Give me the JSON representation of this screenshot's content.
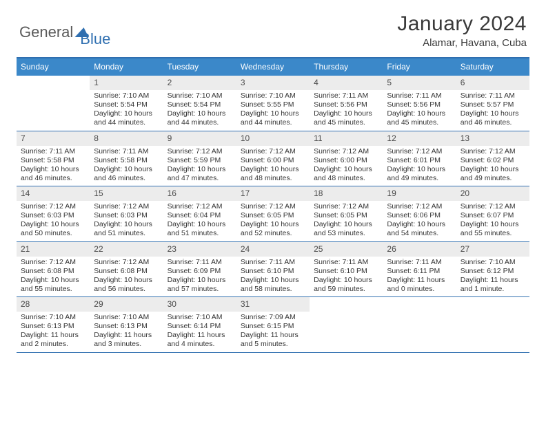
{
  "logo": {
    "text1": "General",
    "text2": "Blue"
  },
  "title": "January 2024",
  "location": "Alamar, Havana, Cuba",
  "colors": {
    "header_bar": "#3b88c9",
    "rule": "#2f6fb0",
    "daynum_bg": "#ececec",
    "text": "#333333"
  },
  "daysOfWeek": [
    "Sunday",
    "Monday",
    "Tuesday",
    "Wednesday",
    "Thursday",
    "Friday",
    "Saturday"
  ],
  "weeks": [
    [
      null,
      {
        "n": "1",
        "sr": "7:10 AM",
        "ss": "5:54 PM",
        "dl": "10 hours and 44 minutes."
      },
      {
        "n": "2",
        "sr": "7:10 AM",
        "ss": "5:54 PM",
        "dl": "10 hours and 44 minutes."
      },
      {
        "n": "3",
        "sr": "7:10 AM",
        "ss": "5:55 PM",
        "dl": "10 hours and 44 minutes."
      },
      {
        "n": "4",
        "sr": "7:11 AM",
        "ss": "5:56 PM",
        "dl": "10 hours and 45 minutes."
      },
      {
        "n": "5",
        "sr": "7:11 AM",
        "ss": "5:56 PM",
        "dl": "10 hours and 45 minutes."
      },
      {
        "n": "6",
        "sr": "7:11 AM",
        "ss": "5:57 PM",
        "dl": "10 hours and 46 minutes."
      }
    ],
    [
      {
        "n": "7",
        "sr": "7:11 AM",
        "ss": "5:58 PM",
        "dl": "10 hours and 46 minutes."
      },
      {
        "n": "8",
        "sr": "7:11 AM",
        "ss": "5:58 PM",
        "dl": "10 hours and 46 minutes."
      },
      {
        "n": "9",
        "sr": "7:12 AM",
        "ss": "5:59 PM",
        "dl": "10 hours and 47 minutes."
      },
      {
        "n": "10",
        "sr": "7:12 AM",
        "ss": "6:00 PM",
        "dl": "10 hours and 48 minutes."
      },
      {
        "n": "11",
        "sr": "7:12 AM",
        "ss": "6:00 PM",
        "dl": "10 hours and 48 minutes."
      },
      {
        "n": "12",
        "sr": "7:12 AM",
        "ss": "6:01 PM",
        "dl": "10 hours and 49 minutes."
      },
      {
        "n": "13",
        "sr": "7:12 AM",
        "ss": "6:02 PM",
        "dl": "10 hours and 49 minutes."
      }
    ],
    [
      {
        "n": "14",
        "sr": "7:12 AM",
        "ss": "6:03 PM",
        "dl": "10 hours and 50 minutes."
      },
      {
        "n": "15",
        "sr": "7:12 AM",
        "ss": "6:03 PM",
        "dl": "10 hours and 51 minutes."
      },
      {
        "n": "16",
        "sr": "7:12 AM",
        "ss": "6:04 PM",
        "dl": "10 hours and 51 minutes."
      },
      {
        "n": "17",
        "sr": "7:12 AM",
        "ss": "6:05 PM",
        "dl": "10 hours and 52 minutes."
      },
      {
        "n": "18",
        "sr": "7:12 AM",
        "ss": "6:05 PM",
        "dl": "10 hours and 53 minutes."
      },
      {
        "n": "19",
        "sr": "7:12 AM",
        "ss": "6:06 PM",
        "dl": "10 hours and 54 minutes."
      },
      {
        "n": "20",
        "sr": "7:12 AM",
        "ss": "6:07 PM",
        "dl": "10 hours and 55 minutes."
      }
    ],
    [
      {
        "n": "21",
        "sr": "7:12 AM",
        "ss": "6:08 PM",
        "dl": "10 hours and 55 minutes."
      },
      {
        "n": "22",
        "sr": "7:12 AM",
        "ss": "6:08 PM",
        "dl": "10 hours and 56 minutes."
      },
      {
        "n": "23",
        "sr": "7:11 AM",
        "ss": "6:09 PM",
        "dl": "10 hours and 57 minutes."
      },
      {
        "n": "24",
        "sr": "7:11 AM",
        "ss": "6:10 PM",
        "dl": "10 hours and 58 minutes."
      },
      {
        "n": "25",
        "sr": "7:11 AM",
        "ss": "6:10 PM",
        "dl": "10 hours and 59 minutes."
      },
      {
        "n": "26",
        "sr": "7:11 AM",
        "ss": "6:11 PM",
        "dl": "11 hours and 0 minutes."
      },
      {
        "n": "27",
        "sr": "7:10 AM",
        "ss": "6:12 PM",
        "dl": "11 hours and 1 minute."
      }
    ],
    [
      {
        "n": "28",
        "sr": "7:10 AM",
        "ss": "6:13 PM",
        "dl": "11 hours and 2 minutes."
      },
      {
        "n": "29",
        "sr": "7:10 AM",
        "ss": "6:13 PM",
        "dl": "11 hours and 3 minutes."
      },
      {
        "n": "30",
        "sr": "7:10 AM",
        "ss": "6:14 PM",
        "dl": "11 hours and 4 minutes."
      },
      {
        "n": "31",
        "sr": "7:09 AM",
        "ss": "6:15 PM",
        "dl": "11 hours and 5 minutes."
      },
      null,
      null,
      null
    ]
  ],
  "labels": {
    "sunrise": "Sunrise: ",
    "sunset": "Sunset: ",
    "daylight": "Daylight: "
  }
}
